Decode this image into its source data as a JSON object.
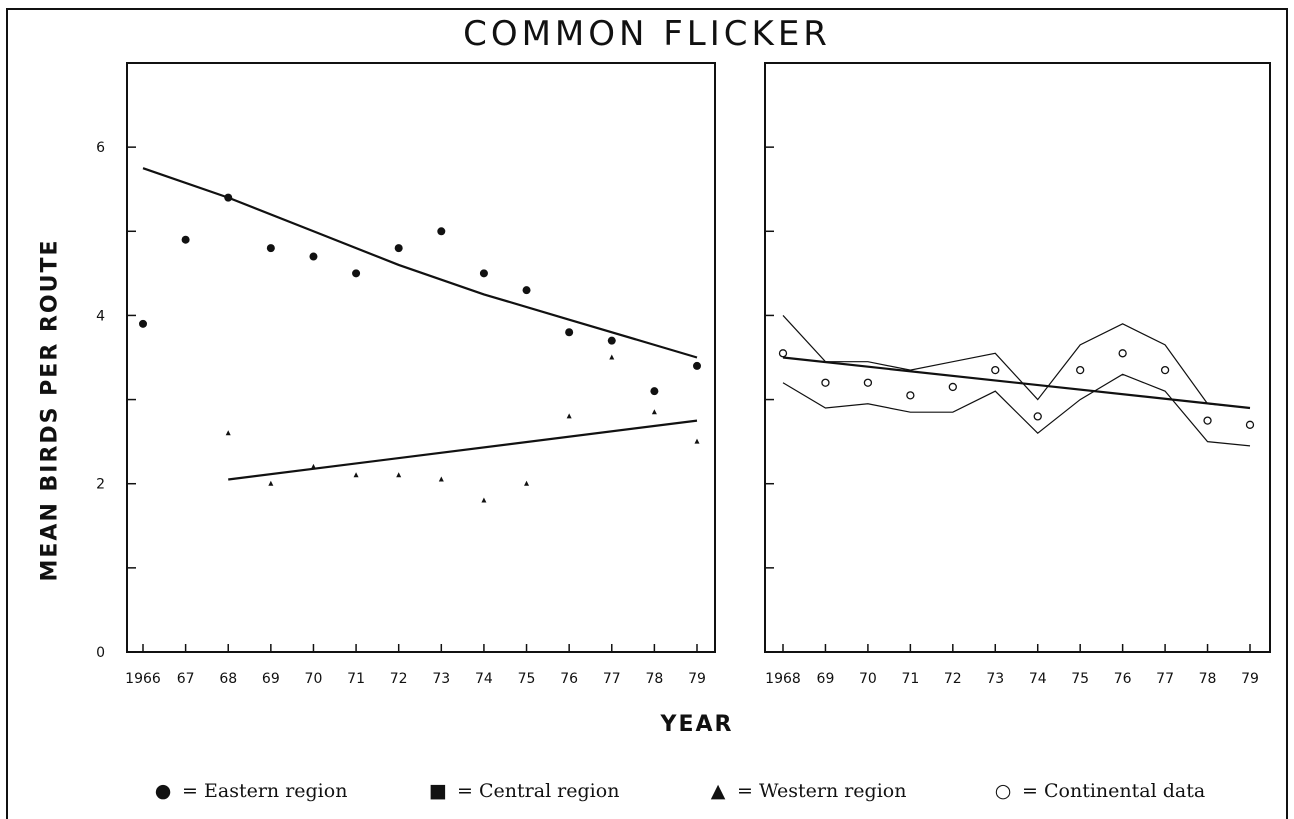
{
  "chart_data": [
    {
      "type": "scatter",
      "panel": "left",
      "title": "COMMON  FLICKER",
      "xlabel": "YEAR",
      "ylabel": "MEAN BIRDS PER ROUTE",
      "xlim": [
        1966,
        1979
      ],
      "ylim": [
        0,
        7
      ],
      "x_tick_labels": [
        "1966",
        "67",
        "68",
        "69",
        "70",
        "71",
        "72",
        "73",
        "74",
        "75",
        "76",
        "77",
        "78",
        "79"
      ],
      "x_tick_values": [
        1966,
        1967,
        1968,
        1969,
        1970,
        1971,
        1972,
        1973,
        1974,
        1975,
        1976,
        1977,
        1978,
        1979
      ],
      "y_tick_labels": [
        "0",
        "2",
        "4",
        "6"
      ],
      "y_tick_values": [
        0,
        2,
        4,
        6
      ],
      "series": [
        {
          "name": "Eastern region",
          "marker": "filled-circle",
          "x": [
            1966,
            1967,
            1968,
            1969,
            1970,
            1971,
            1972,
            1973,
            1974,
            1975,
            1976,
            1977,
            1978,
            1979
          ],
          "values": [
            3.9,
            4.9,
            5.4,
            4.8,
            4.7,
            4.5,
            4.8,
            5.0,
            4.5,
            4.3,
            3.8,
            3.7,
            3.1,
            3.4
          ],
          "trend": {
            "x": [
              1966,
              1968,
              1970,
              1972,
              1974,
              1976,
              1978,
              1979
            ],
            "values": [
              5.75,
              5.4,
              5.0,
              4.6,
              4.25,
              3.95,
              3.65,
              3.5
            ]
          }
        },
        {
          "name": "Western region",
          "marker": "filled-triangle",
          "x": [
            1968,
            1969,
            1970,
            1971,
            1972,
            1973,
            1974,
            1975,
            1976,
            1977,
            1978,
            1979
          ],
          "values": [
            2.6,
            2.0,
            2.2,
            2.1,
            2.1,
            2.05,
            1.8,
            2.0,
            2.8,
            3.5,
            2.85,
            2.5
          ],
          "trend": {
            "x": [
              1968,
              1979
            ],
            "values": [
              2.05,
              2.75
            ]
          }
        }
      ]
    },
    {
      "type": "line",
      "panel": "right",
      "xlim": [
        1968,
        1979
      ],
      "ylim": [
        0,
        7
      ],
      "x_tick_labels": [
        "1968",
        "69",
        "70",
        "71",
        "72",
        "73",
        "74",
        "75",
        "76",
        "77",
        "78",
        "79"
      ],
      "x_tick_values": [
        1968,
        1969,
        1970,
        1971,
        1972,
        1973,
        1974,
        1975,
        1976,
        1977,
        1978,
        1979
      ],
      "y_tick_values": [
        0,
        1,
        2,
        3,
        4,
        5,
        6
      ],
      "series": [
        {
          "name": "Continental data",
          "marker": "open-circle",
          "x": [
            1968,
            1969,
            1970,
            1971,
            1972,
            1973,
            1974,
            1975,
            1976,
            1977,
            1978,
            1979
          ],
          "values": [
            3.55,
            3.2,
            3.2,
            3.05,
            3.15,
            3.35,
            2.8,
            3.35,
            3.55,
            3.35,
            2.75,
            2.7
          ],
          "upper": [
            4.0,
            3.45,
            3.45,
            3.35,
            3.45,
            3.55,
            3.0,
            3.65,
            3.9,
            3.65,
            2.95,
            2.9
          ],
          "lower": [
            3.2,
            2.9,
            2.95,
            2.85,
            2.85,
            3.1,
            2.6,
            3.0,
            3.3,
            3.1,
            2.5,
            2.45
          ],
          "trend": {
            "x": [
              1968,
              1979
            ],
            "values": [
              3.5,
              2.9
            ]
          }
        }
      ]
    }
  ],
  "legend": [
    {
      "symbol": "●",
      "label": "= Eastern region"
    },
    {
      "symbol": "■",
      "label": "= Central region"
    },
    {
      "symbol": "▲",
      "label": "= Western region"
    },
    {
      "symbol": "○",
      "label": "= Continental data"
    }
  ],
  "colors": {
    "ink": "#111111",
    "background": "#ffffff"
  }
}
